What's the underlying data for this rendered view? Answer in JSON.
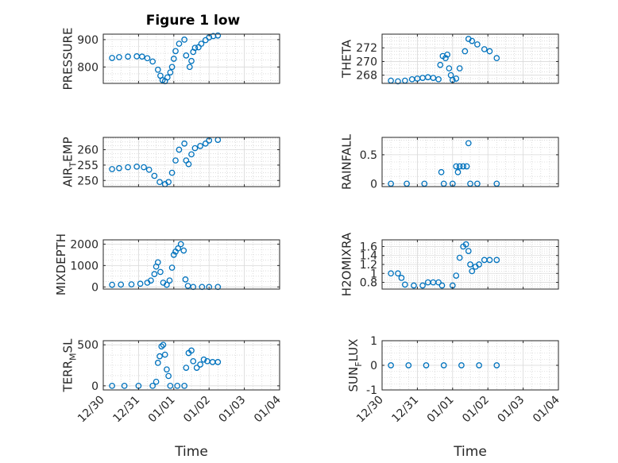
{
  "title": "Figure 1 low",
  "colors": {
    "marker": "#0072BD",
    "axis": "#262626",
    "grid": "#c8c8c8",
    "background": "#ffffff"
  },
  "chart_data": [
    {
      "type": "scatter",
      "title": "Figure 1 low",
      "ylabel": "PRESSURE",
      "xlabel": "",
      "xlim": [
        "12/30",
        "01/04"
      ],
      "ylim": [
        740,
        920
      ],
      "yticks": [
        800,
        900
      ],
      "ytick_labels": [
        "800",
        "900"
      ],
      "xtick_labels": [
        "12/30",
        "12/31",
        "01/01",
        "01/02",
        "01/03",
        "01/04"
      ],
      "show_xtick_labels": false,
      "grid": true,
      "marker": "circle-open",
      "points": [
        [
          0.25,
          833
        ],
        [
          0.45,
          836
        ],
        [
          0.7,
          838
        ],
        [
          0.95,
          839
        ],
        [
          1.1,
          838
        ],
        [
          1.25,
          832
        ],
        [
          1.4,
          820
        ],
        [
          1.55,
          790
        ],
        [
          1.62,
          768
        ],
        [
          1.68,
          752
        ],
        [
          1.75,
          748
        ],
        [
          1.82,
          762
        ],
        [
          1.9,
          780
        ],
        [
          1.95,
          800
        ],
        [
          2.0,
          830
        ],
        [
          2.05,
          858
        ],
        [
          2.15,
          885
        ],
        [
          2.3,
          900
        ],
        [
          2.35,
          842
        ],
        [
          2.45,
          800
        ],
        [
          2.5,
          822
        ],
        [
          2.55,
          855
        ],
        [
          2.6,
          870
        ],
        [
          2.7,
          872
        ],
        [
          2.78,
          885
        ],
        [
          2.9,
          898
        ],
        [
          3.0,
          908
        ],
        [
          3.12,
          913
        ],
        [
          3.25,
          915
        ]
      ]
    },
    {
      "type": "scatter",
      "title": "",
      "ylabel": "THETA",
      "xlabel": "",
      "xlim": [
        "12/30",
        "01/04"
      ],
      "ylim": [
        266.8,
        274
      ],
      "yticks": [
        268,
        270,
        272
      ],
      "ytick_labels": [
        "268",
        "270",
        "272"
      ],
      "xtick_labels": [
        "12/30",
        "12/31",
        "01/01",
        "01/02",
        "01/03",
        "01/04"
      ],
      "show_xtick_labels": false,
      "grid": true,
      "marker": "circle-open",
      "points": [
        [
          0.25,
          267.2
        ],
        [
          0.45,
          267.1
        ],
        [
          0.65,
          267.2
        ],
        [
          0.85,
          267.4
        ],
        [
          1.0,
          267.5
        ],
        [
          1.15,
          267.6
        ],
        [
          1.3,
          267.7
        ],
        [
          1.45,
          267.6
        ],
        [
          1.6,
          267.4
        ],
        [
          1.65,
          269.5
        ],
        [
          1.72,
          270.8
        ],
        [
          1.8,
          270.5
        ],
        [
          1.85,
          271.0
        ],
        [
          1.9,
          269.0
        ],
        [
          1.95,
          268.0
        ],
        [
          2.0,
          267.3
        ],
        [
          2.1,
          267.5
        ],
        [
          2.2,
          269.0
        ],
        [
          2.35,
          271.5
        ],
        [
          2.45,
          273.3
        ],
        [
          2.55,
          273.0
        ],
        [
          2.7,
          272.5
        ],
        [
          2.9,
          271.8
        ],
        [
          3.05,
          271.5
        ],
        [
          3.25,
          270.5
        ]
      ]
    },
    {
      "type": "scatter",
      "title": "",
      "ylabel": "AIR_TEMP",
      "xlabel": "",
      "xlim": [
        "12/30",
        "01/04"
      ],
      "ylim": [
        248,
        264
      ],
      "yticks": [
        250,
        255,
        260
      ],
      "ytick_labels": [
        "250",
        "255",
        "260"
      ],
      "xtick_labels": [
        "12/30",
        "12/31",
        "01/01",
        "01/02",
        "01/03",
        "01/04"
      ],
      "show_xtick_labels": false,
      "grid": true,
      "marker": "circle-open",
      "points": [
        [
          0.25,
          253.7
        ],
        [
          0.45,
          254.0
        ],
        [
          0.7,
          254.3
        ],
        [
          0.95,
          254.5
        ],
        [
          1.15,
          254.3
        ],
        [
          1.3,
          253.5
        ],
        [
          1.45,
          251.5
        ],
        [
          1.6,
          249.5
        ],
        [
          1.75,
          248.8
        ],
        [
          1.85,
          249.5
        ],
        [
          1.95,
          252.5
        ],
        [
          2.05,
          256.5
        ],
        [
          2.15,
          260.0
        ],
        [
          2.3,
          262.0
        ],
        [
          2.35,
          256.5
        ],
        [
          2.42,
          255.3
        ],
        [
          2.5,
          258.5
        ],
        [
          2.6,
          260.5
        ],
        [
          2.75,
          261.2
        ],
        [
          2.9,
          262.0
        ],
        [
          3.0,
          263.0
        ],
        [
          3.25,
          263.2
        ]
      ]
    },
    {
      "type": "scatter",
      "title": "",
      "ylabel": "RAINFALL",
      "xlabel": "",
      "xlim": [
        "12/30",
        "01/04"
      ],
      "ylim": [
        -0.05,
        0.8
      ],
      "yticks": [
        0,
        0.5
      ],
      "ytick_labels": [
        "0",
        "0.5"
      ],
      "xtick_labels": [
        "12/30",
        "12/31",
        "01/01",
        "01/02",
        "01/03",
        "01/04"
      ],
      "show_xtick_labels": false,
      "grid": true,
      "marker": "circle-open",
      "points": [
        [
          0.25,
          0
        ],
        [
          0.7,
          0
        ],
        [
          1.2,
          0
        ],
        [
          1.68,
          0.2
        ],
        [
          1.75,
          0
        ],
        [
          2.0,
          0
        ],
        [
          2.1,
          0.3
        ],
        [
          2.15,
          0.2
        ],
        [
          2.2,
          0.3
        ],
        [
          2.3,
          0.3
        ],
        [
          2.4,
          0.3
        ],
        [
          2.45,
          0.7
        ],
        [
          2.5,
          0
        ],
        [
          2.7,
          0
        ],
        [
          3.25,
          0
        ]
      ]
    },
    {
      "type": "scatter",
      "title": "",
      "ylabel": "MIXDEPTH",
      "xlabel": "",
      "xlim": [
        "12/30",
        "01/04"
      ],
      "ylim": [
        -100,
        2200
      ],
      "yticks": [
        0,
        1000,
        2000
      ],
      "ytick_labels": [
        "0",
        "1000",
        "2000"
      ],
      "xtick_labels": [
        "12/30",
        "12/31",
        "01/01",
        "01/02",
        "01/03",
        "01/04"
      ],
      "show_xtick_labels": false,
      "grid": true,
      "marker": "circle-open",
      "points": [
        [
          0.25,
          100
        ],
        [
          0.5,
          110
        ],
        [
          0.8,
          120
        ],
        [
          1.05,
          150
        ],
        [
          1.25,
          200
        ],
        [
          1.35,
          300
        ],
        [
          1.45,
          600
        ],
        [
          1.5,
          950
        ],
        [
          1.55,
          1150
        ],
        [
          1.62,
          700
        ],
        [
          1.7,
          200
        ],
        [
          1.8,
          100
        ],
        [
          1.88,
          300
        ],
        [
          1.95,
          900
        ],
        [
          2.0,
          1500
        ],
        [
          2.05,
          1650
        ],
        [
          2.12,
          1800
        ],
        [
          2.2,
          2000
        ],
        [
          2.28,
          1700
        ],
        [
          2.33,
          350
        ],
        [
          2.4,
          50
        ],
        [
          2.55,
          0
        ],
        [
          2.8,
          0
        ],
        [
          3.0,
          0
        ],
        [
          3.25,
          0
        ]
      ]
    },
    {
      "type": "scatter",
      "title": "",
      "ylabel": "H2OMIXRA",
      "xlabel": "",
      "xlim": [
        "12/30",
        "01/04"
      ],
      "ylim": [
        0.65,
        1.75
      ],
      "yticks": [
        0.8,
        1,
        1.2,
        1.4,
        1.6
      ],
      "ytick_labels": [
        "0.8",
        "1",
        "1.2",
        "1.4",
        "1.6"
      ],
      "xtick_labels": [
        "12/30",
        "12/31",
        "01/01",
        "01/02",
        "01/03",
        "01/04"
      ],
      "show_xtick_labels": false,
      "grid": true,
      "marker": "circle-open",
      "points": [
        [
          0.25,
          1.0
        ],
        [
          0.45,
          1.0
        ],
        [
          0.55,
          0.9
        ],
        [
          0.65,
          0.75
        ],
        [
          0.9,
          0.73
        ],
        [
          1.15,
          0.73
        ],
        [
          1.3,
          0.8
        ],
        [
          1.45,
          0.8
        ],
        [
          1.6,
          0.8
        ],
        [
          1.7,
          0.73
        ],
        [
          2.0,
          0.73
        ],
        [
          2.1,
          0.95
        ],
        [
          2.2,
          1.35
        ],
        [
          2.3,
          1.6
        ],
        [
          2.38,
          1.65
        ],
        [
          2.45,
          1.5
        ],
        [
          2.5,
          1.2
        ],
        [
          2.55,
          1.05
        ],
        [
          2.65,
          1.15
        ],
        [
          2.75,
          1.2
        ],
        [
          2.9,
          1.3
        ],
        [
          3.05,
          1.3
        ],
        [
          3.25,
          1.3
        ]
      ]
    },
    {
      "type": "scatter",
      "title": "",
      "ylabel": "TERR_MSL",
      "xlabel": "Time",
      "xlim": [
        "12/30",
        "01/04"
      ],
      "ylim": [
        -50,
        550
      ],
      "yticks": [
        0,
        500
      ],
      "ytick_labels": [
        "0",
        "500"
      ],
      "xtick_labels": [
        "12/30",
        "12/31",
        "01/01",
        "01/02",
        "01/03",
        "01/04"
      ],
      "show_xtick_labels": true,
      "grid": true,
      "marker": "circle-open",
      "points": [
        [
          0.25,
          0
        ],
        [
          0.6,
          0
        ],
        [
          1.0,
          0
        ],
        [
          1.4,
          0
        ],
        [
          1.5,
          50
        ],
        [
          1.55,
          280
        ],
        [
          1.6,
          360
        ],
        [
          1.65,
          480
        ],
        [
          1.7,
          500
        ],
        [
          1.75,
          380
        ],
        [
          1.8,
          200
        ],
        [
          1.85,
          120
        ],
        [
          1.9,
          0
        ],
        [
          2.1,
          0
        ],
        [
          2.3,
          0
        ],
        [
          2.35,
          220
        ],
        [
          2.42,
          400
        ],
        [
          2.5,
          430
        ],
        [
          2.55,
          300
        ],
        [
          2.65,
          220
        ],
        [
          2.75,
          260
        ],
        [
          2.85,
          320
        ],
        [
          2.95,
          300
        ],
        [
          3.1,
          290
        ],
        [
          3.25,
          290
        ]
      ]
    },
    {
      "type": "scatter",
      "title": "",
      "ylabel": "SUN_FLUX",
      "xlabel": "Time",
      "xlim": [
        "12/30",
        "01/04"
      ],
      "ylim": [
        -1,
        1
      ],
      "yticks": [
        -1,
        0,
        1
      ],
      "ytick_labels": [
        "-1",
        "0",
        "1"
      ],
      "xtick_labels": [
        "12/30",
        "12/31",
        "01/01",
        "01/02",
        "01/03",
        "01/04"
      ],
      "show_xtick_labels": true,
      "grid": true,
      "marker": "circle-open",
      "points": [
        [
          0.25,
          0
        ],
        [
          0.75,
          0
        ],
        [
          1.25,
          0
        ],
        [
          1.75,
          0
        ],
        [
          2.25,
          0
        ],
        [
          2.75,
          0
        ],
        [
          3.25,
          0
        ]
      ]
    }
  ]
}
